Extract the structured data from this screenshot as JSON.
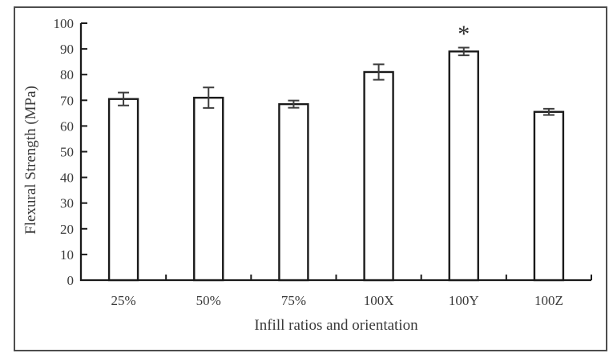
{
  "figure": {
    "background": "#ffffff",
    "border_color": "#4d4d4d"
  },
  "chart_data": {
    "type": "bar",
    "title": "",
    "xlabel": "Infill ratios and orientation",
    "ylabel": "Flexural Strength (MPa)",
    "categories": [
      "25%",
      "50%",
      "75%",
      "100X",
      "100Y",
      "100Z"
    ],
    "values": [
      70.5,
      71,
      68.5,
      81,
      89,
      65.5
    ],
    "error_bars": [
      2.5,
      4.0,
      1.4,
      3.0,
      1.5,
      1.2
    ],
    "annotations": [
      {
        "category_index": 4,
        "text": "*",
        "meaning": "significance-marker"
      }
    ],
    "ylim": [
      0,
      100
    ],
    "yticks": [
      0,
      10,
      20,
      30,
      40,
      50,
      60,
      70,
      80,
      90,
      100
    ],
    "grid": false,
    "legend": null,
    "colors": {
      "axis": "#1a1a1a",
      "text": "#3a3a3a",
      "bar_fill": "#ffffff",
      "bar_stroke": "#1a1a1a",
      "error_bar": "#3d3d3d"
    }
  }
}
